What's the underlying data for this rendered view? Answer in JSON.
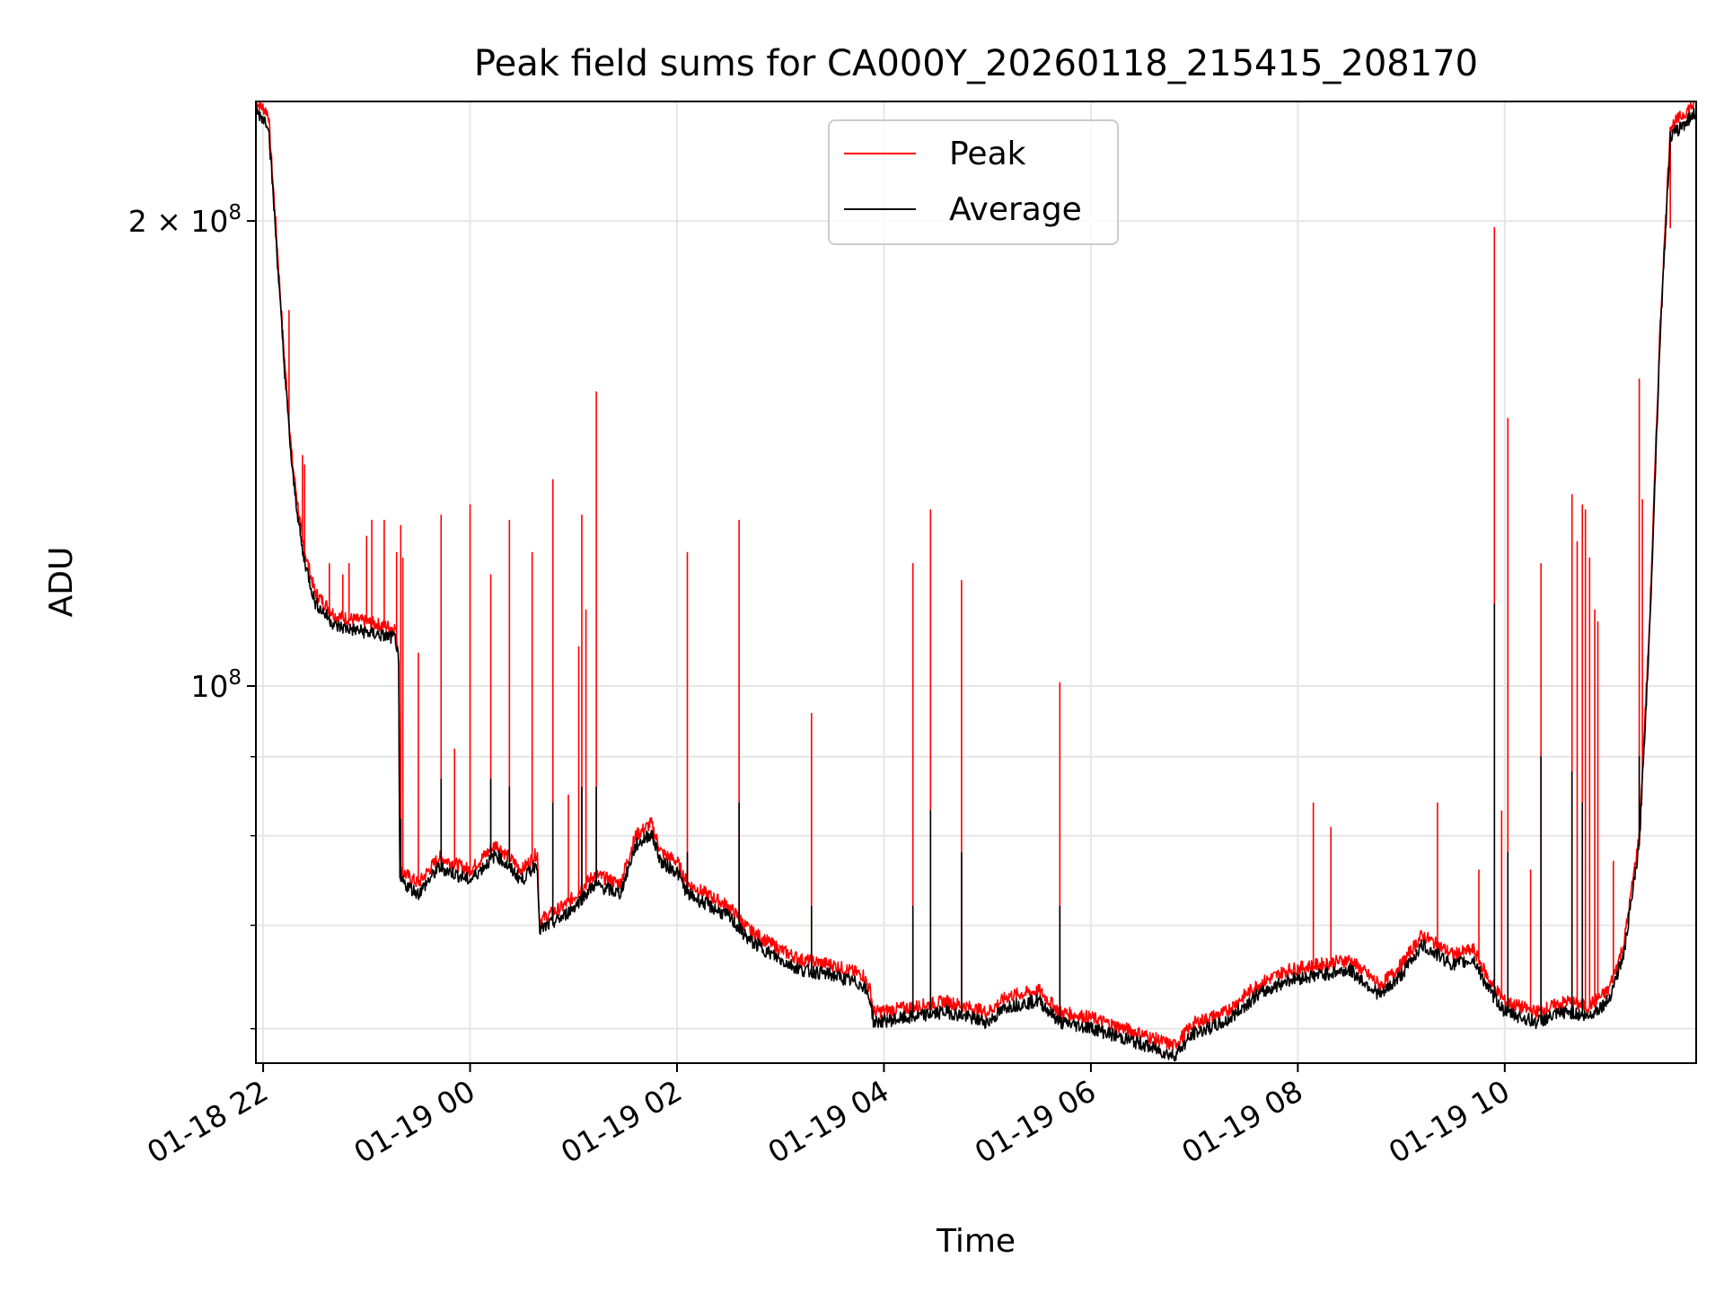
{
  "chart_data": {
    "type": "line",
    "title": "Peak field sums for CA000Y_20260118_215415_208170",
    "xlabel": "Time",
    "ylabel": "ADU",
    "yscale": "log",
    "xlim": [
      21.93,
      35.85
    ],
    "ylim": [
      57000000,
      239000000
    ],
    "grid": true,
    "legend_position": "top-center",
    "x_ticks": [
      {
        "value": 22,
        "label": "01-18 22"
      },
      {
        "value": 24,
        "label": "01-19 00"
      },
      {
        "value": 26,
        "label": "01-19 02"
      },
      {
        "value": 28,
        "label": "01-19 04"
      },
      {
        "value": 30,
        "label": "01-19 06"
      },
      {
        "value": 32,
        "label": "01-19 08"
      },
      {
        "value": 34,
        "label": "01-19 10"
      }
    ],
    "y_major_ticks": [
      {
        "value": 100000000,
        "mantissa": "",
        "exponent": "8"
      },
      {
        "value": 200000000,
        "mantissa": "2 × ",
        "exponent": "8"
      }
    ],
    "y_minor_ticks": [
      60000000,
      70000000,
      80000000,
      90000000
    ],
    "series": [
      {
        "name": "Peak",
        "color": "#ff0000",
        "baseline": [
          [
            21.93,
            239000000
          ],
          [
            22.05,
            235000000
          ],
          [
            22.12,
            200000000
          ],
          [
            22.2,
            165000000
          ],
          [
            22.28,
            140000000
          ],
          [
            22.38,
            124000000
          ],
          [
            22.5,
            115000000
          ],
          [
            22.7,
            111000000
          ],
          [
            23.0,
            110000000
          ],
          [
            23.28,
            109000000
          ],
          [
            23.31,
            105000000
          ],
          [
            23.32,
            76000000
          ],
          [
            23.5,
            74500000
          ],
          [
            23.7,
            77500000
          ],
          [
            24.0,
            76000000
          ],
          [
            24.25,
            79000000
          ],
          [
            24.5,
            76000000
          ],
          [
            24.65,
            78000000
          ],
          [
            24.67,
            70500000
          ],
          [
            24.9,
            72000000
          ],
          [
            25.0,
            73000000
          ],
          [
            25.2,
            75500000
          ],
          [
            25.45,
            74500000
          ],
          [
            25.6,
            80000000
          ],
          [
            25.75,
            81500000
          ],
          [
            25.85,
            78000000
          ],
          [
            26.0,
            77000000
          ],
          [
            26.1,
            74500000
          ],
          [
            26.5,
            72000000
          ],
          [
            26.7,
            69500000
          ],
          [
            27.0,
            67500000
          ],
          [
            27.2,
            66500000
          ],
          [
            27.5,
            66000000
          ],
          [
            27.8,
            65000000
          ],
          [
            27.87,
            63500000
          ],
          [
            27.9,
            61500000
          ],
          [
            28.3,
            62000000
          ],
          [
            28.6,
            62500000
          ],
          [
            29.0,
            61500000
          ],
          [
            29.2,
            63000000
          ],
          [
            29.5,
            63500000
          ],
          [
            29.7,
            61500000
          ],
          [
            30.0,
            61000000
          ],
          [
            30.5,
            59500000
          ],
          [
            30.8,
            58500000
          ],
          [
            31.0,
            60500000
          ],
          [
            31.3,
            61500000
          ],
          [
            31.6,
            64000000
          ],
          [
            31.9,
            65500000
          ],
          [
            32.2,
            66000000
          ],
          [
            32.5,
            66500000
          ],
          [
            32.8,
            64000000
          ],
          [
            33.0,
            66000000
          ],
          [
            33.2,
            69000000
          ],
          [
            33.5,
            67000000
          ],
          [
            33.7,
            67500000
          ],
          [
            33.85,
            64500000
          ],
          [
            34.0,
            62500000
          ],
          [
            34.3,
            61500000
          ],
          [
            34.6,
            62500000
          ],
          [
            34.8,
            62000000
          ],
          [
            35.0,
            63500000
          ],
          [
            35.15,
            68000000
          ],
          [
            35.3,
            80000000
          ],
          [
            35.4,
            110000000
          ],
          [
            35.5,
            170000000
          ],
          [
            35.6,
            230000000
          ],
          [
            35.85,
            239000000
          ]
        ],
        "spikes": [
          [
            22.25,
            175000000
          ],
          [
            22.38,
            141000000
          ],
          [
            22.4,
            139000000
          ],
          [
            22.64,
            120000000
          ],
          [
            22.77,
            118000000
          ],
          [
            22.83,
            120000000
          ],
          [
            23.0,
            125000000
          ],
          [
            23.05,
            128000000
          ],
          [
            23.17,
            128000000
          ],
          [
            23.29,
            122000000
          ],
          [
            23.33,
            127000000
          ],
          [
            23.35,
            121000000
          ],
          [
            23.5,
            105000000
          ],
          [
            23.72,
            129000000
          ],
          [
            23.85,
            91000000
          ],
          [
            24.0,
            131000000
          ],
          [
            24.2,
            118000000
          ],
          [
            24.38,
            128000000
          ],
          [
            24.6,
            122000000
          ],
          [
            24.8,
            136000000
          ],
          [
            24.95,
            85000000
          ],
          [
            25.05,
            106000000
          ],
          [
            25.08,
            129000000
          ],
          [
            25.12,
            112000000
          ],
          [
            25.22,
            155000000
          ],
          [
            26.1,
            122000000
          ],
          [
            26.6,
            128000000
          ],
          [
            27.3,
            96000000
          ],
          [
            28.28,
            120000000
          ],
          [
            28.45,
            130000000
          ],
          [
            28.75,
            117000000
          ],
          [
            29.7,
            100500000
          ],
          [
            32.15,
            84000000
          ],
          [
            32.32,
            81000000
          ],
          [
            33.35,
            84000000
          ],
          [
            33.75,
            76000000
          ],
          [
            33.9,
            198000000
          ],
          [
            33.97,
            83000000
          ],
          [
            34.03,
            149000000
          ],
          [
            34.25,
            76000000
          ],
          [
            34.35,
            120000000
          ],
          [
            34.65,
            133000000
          ],
          [
            34.7,
            124000000
          ],
          [
            34.75,
            131000000
          ],
          [
            34.78,
            130000000
          ],
          [
            34.82,
            121000000
          ],
          [
            34.87,
            112000000
          ],
          [
            34.9,
            110000000
          ],
          [
            35.05,
            77000000
          ],
          [
            35.3,
            158000000
          ],
          [
            35.33,
            132000000
          ],
          [
            35.6,
            198000000
          ]
        ]
      },
      {
        "name": "Average",
        "color": "#000000",
        "offset_factor": 0.985,
        "spikes": [
          [
            23.33,
            82000000
          ],
          [
            23.72,
            87000000
          ],
          [
            24.2,
            87000000
          ],
          [
            24.38,
            86000000
          ],
          [
            24.8,
            84000000
          ],
          [
            25.08,
            86000000
          ],
          [
            25.22,
            86000000
          ],
          [
            26.1,
            78000000
          ],
          [
            26.6,
            84000000
          ],
          [
            27.3,
            72000000
          ],
          [
            28.28,
            72000000
          ],
          [
            28.45,
            83000000
          ],
          [
            28.75,
            78000000
          ],
          [
            29.7,
            72000000
          ],
          [
            33.9,
            113000000
          ],
          [
            34.03,
            78000000
          ],
          [
            34.35,
            90000000
          ],
          [
            34.65,
            88000000
          ],
          [
            34.75,
            84000000
          ],
          [
            35.3,
            90000000
          ]
        ]
      }
    ]
  }
}
